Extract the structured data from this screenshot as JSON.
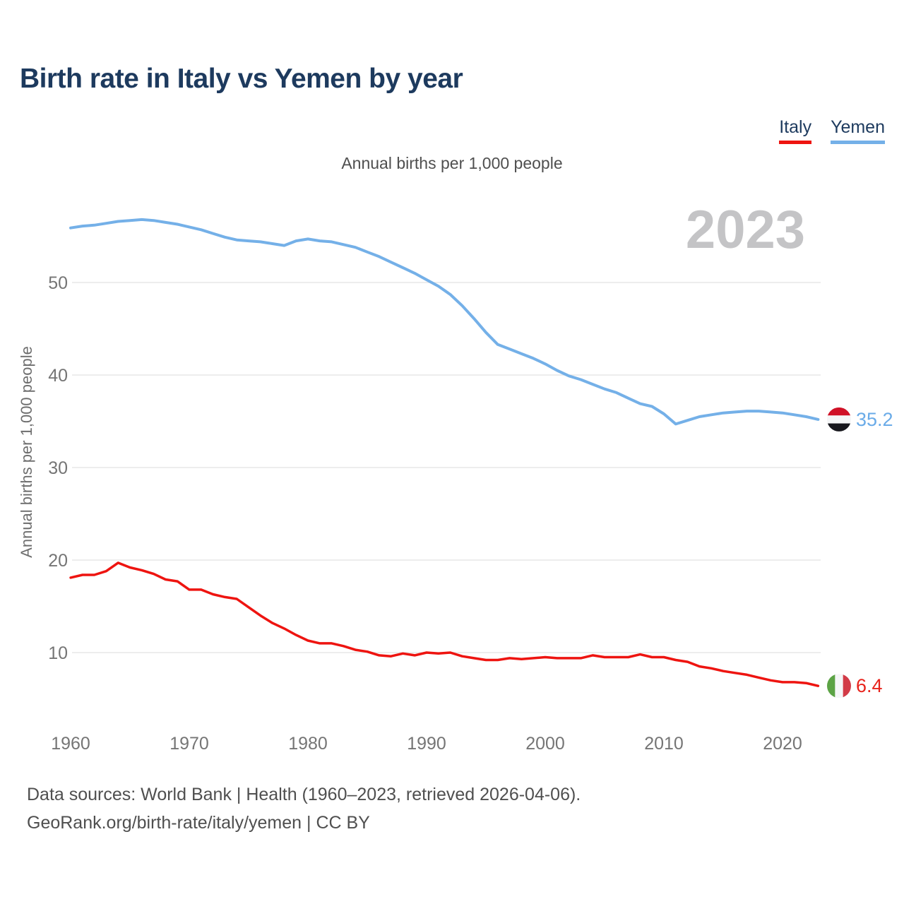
{
  "title": "Birth rate in Italy vs Yemen by year",
  "subtitle": "Annual births per 1,000 people",
  "watermark": "2023",
  "y_axis_title": "Annual births per 1,000 people",
  "legend": [
    {
      "label": "Italy",
      "color": "#ee1410"
    },
    {
      "label": "Yemen",
      "color": "#74b0e8"
    }
  ],
  "colors": {
    "italy_red": "#ee1410",
    "yemen_blue": "#74b0e8",
    "title_navy": "#1d3a5e",
    "watermark_gray": "#c4c4c6",
    "gridline_gray": "#e7e7e7",
    "tick_gray": "#757575"
  },
  "end_labels": [
    {
      "series": "Yemen",
      "value": "35.2",
      "text_color": "#6aabe8",
      "flag": "yemen-flag-icon",
      "flag_orientation": "horizontal",
      "flag_colors": [
        "#d01127",
        "#f5f6f7",
        "#17171d"
      ]
    },
    {
      "series": "Italy",
      "value": "6.4",
      "text_color": "#e8231c",
      "flag": "italy-flag-icon",
      "flag_orientation": "vertical",
      "flag_colors": [
        "#5ca345",
        "#f5f6f7",
        "#d23b47"
      ]
    }
  ],
  "footer": {
    "line1": "Data sources: World Bank | Health (1960–2023, retrieved 2026-04-06).",
    "line2": "GeoRank.org/birth-rate/italy/yemen | CC BY"
  },
  "chart_data": {
    "type": "line",
    "title": "Birth rate in Italy vs Yemen by year",
    "xlabel": "",
    "ylabel": "Annual births per 1,000 people",
    "x": [
      1960,
      1961,
      1962,
      1963,
      1964,
      1965,
      1966,
      1967,
      1968,
      1969,
      1970,
      1971,
      1972,
      1973,
      1974,
      1975,
      1976,
      1977,
      1978,
      1979,
      1980,
      1981,
      1982,
      1983,
      1984,
      1985,
      1986,
      1987,
      1988,
      1989,
      1990,
      1991,
      1992,
      1993,
      1994,
      1995,
      1996,
      1997,
      1998,
      1999,
      2000,
      2001,
      2002,
      2003,
      2004,
      2005,
      2006,
      2007,
      2008,
      2009,
      2010,
      2011,
      2012,
      2013,
      2014,
      2015,
      2016,
      2017,
      2018,
      2019,
      2020,
      2021,
      2022,
      2023
    ],
    "series": [
      {
        "name": "Italy",
        "color": "#ee1410",
        "values": [
          18.1,
          18.4,
          18.4,
          18.8,
          19.7,
          19.2,
          18.9,
          18.5,
          17.9,
          17.7,
          16.8,
          16.8,
          16.3,
          16.0,
          15.8,
          14.9,
          14.0,
          13.2,
          12.6,
          11.9,
          11.3,
          11.0,
          11.0,
          10.7,
          10.3,
          10.1,
          9.7,
          9.6,
          9.9,
          9.7,
          10.0,
          9.9,
          10.0,
          9.6,
          9.4,
          9.2,
          9.2,
          9.4,
          9.3,
          9.4,
          9.5,
          9.4,
          9.4,
          9.4,
          9.7,
          9.5,
          9.5,
          9.5,
          9.8,
          9.5,
          9.5,
          9.2,
          9.0,
          8.5,
          8.3,
          8.0,
          7.8,
          7.6,
          7.3,
          7.0,
          6.8,
          6.8,
          6.7,
          6.4
        ]
      },
      {
        "name": "Yemen",
        "color": "#74b0e8",
        "values": [
          55.9,
          56.1,
          56.2,
          56.4,
          56.6,
          56.7,
          56.8,
          56.7,
          56.5,
          56.3,
          56.0,
          55.7,
          55.3,
          54.9,
          54.6,
          54.5,
          54.4,
          54.2,
          54.0,
          54.5,
          54.7,
          54.5,
          54.4,
          54.1,
          53.8,
          53.3,
          52.8,
          52.2,
          51.6,
          51.0,
          50.3,
          49.6,
          48.7,
          47.5,
          46.1,
          44.6,
          43.3,
          42.8,
          42.3,
          41.8,
          41.2,
          40.5,
          39.9,
          39.5,
          39.0,
          38.5,
          38.1,
          37.5,
          36.9,
          36.6,
          35.8,
          34.7,
          35.1,
          35.5,
          35.7,
          35.9,
          36.0,
          36.1,
          36.1,
          36.0,
          35.9,
          35.7,
          35.5,
          35.2
        ]
      }
    ],
    "xticks": [
      1960,
      1970,
      1980,
      1990,
      2000,
      2010,
      2020
    ],
    "yticks": [
      10,
      20,
      30,
      40,
      50
    ],
    "xlim": [
      1960,
      2023
    ],
    "ylim": [
      6,
      58
    ],
    "grid": "horizontal",
    "legend_position": "top-right"
  }
}
